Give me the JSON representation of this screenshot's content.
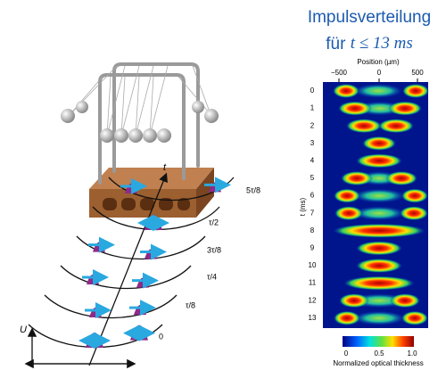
{
  "title": {
    "line1": "Impulsverteilung",
    "line2_prefix": "für",
    "line2_math": "t ≤ 13 ms"
  },
  "heatmap": {
    "x_axis_label": "Position (µm)",
    "x_ticks": [
      "−500",
      "0",
      "500"
    ],
    "y_axis_label": "t (ms)",
    "row_labels": [
      "0",
      "1",
      "2",
      "3",
      "4",
      "5",
      "6",
      "7",
      "8",
      "9",
      "10",
      "11",
      "12",
      "13"
    ],
    "colorbar_ticks": [
      "0",
      "0.5",
      "1.0"
    ],
    "colorbar_label": "Normalized optical thickness"
  },
  "diagram": {
    "time_axis_label": "t",
    "potential_label": "U",
    "phase_labels": [
      "0",
      "τ/8",
      "τ/4",
      "3τ/8",
      "τ/2",
      "5τ/8"
    ]
  }
}
